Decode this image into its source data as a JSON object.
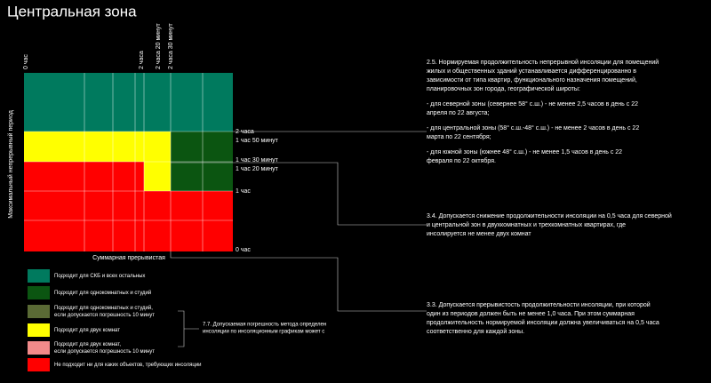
{
  "title": "Центральная зона",
  "top_labels": [
    "0 час",
    "2 часа",
    "2 часа 20 минут",
    "2 часа 30 минут"
  ],
  "right_labels": [
    "2 часа",
    "1 час 50 минут",
    "1 час 30 минут",
    "1 час 20 минут",
    "1 час",
    "0 час"
  ],
  "y_axis_label": "Максимальный непрерывный период",
  "x_axis_label": "Суммарная прерывистая",
  "legend": [
    {
      "color": "#007a5e",
      "lines": [
        "Подходит для СКБ и всех остальных"
      ]
    },
    {
      "color": "#0b5511",
      "lines": [
        "Подходит для однокомнатных и студий"
      ]
    },
    {
      "color": "#5a6a35",
      "lines": [
        "Подходит для однокомнатных и студий,",
        "если допускается погрешность 10 минут"
      ]
    },
    {
      "color": "#ffff00",
      "lines": [
        "Подходит для двух комнат"
      ]
    },
    {
      "color": "#f28a8a",
      "lines": [
        "Подходит для двух комнат,",
        "если допускается погрешность 10 минут"
      ]
    },
    {
      "color": "#ff0000",
      "lines": [
        "Не подходит ни для каких объектов, требующих инсоляции"
      ]
    }
  ],
  "notes": [
    {
      "lines": [
        "2.5. Нормируемая продолжительность непрерывной инсоляции для помещений",
        "жилых и общественных зданий устанавливается дифференцированно в",
        "зависимости от типа квартир, функционального назначения помещений,",
        "планировочных зон города, географической широты:",
        "- для северной зоны   (севернее 58° с.ш.)   - не менее 2,5 часов в день с 22",
        "апреля по 22 августа;",
        "- для центральной зоны   (58° с.ш.-48° с.ш.)   - не менее 2 часов в день с 22",
        "марта по 22 сентября;",
        "- для южной зоны   (южнее 48° с.ш.)   - не менее 1,5 часов в день с 22",
        "февраля по 22 октября."
      ]
    },
    {
      "lines": [
        "3.4. Допускается снижение продолжительности инсоляции на 0,5 часа для северной",
        "и центральной зон в двухкомнатных и трехкомнатных квартирах, где",
        "инсолируется не менее двух комнат"
      ]
    },
    {
      "lines": [
        "3.3. Допускается прерывистость продолжительности инсоляции, при которой",
        "один из периодов должен быть не менее 1,0 часа. При этом суммарная",
        "продолжительность нормируемой инсоляции должна увеличиваться на 0,5 часа",
        "соответственно для каждой зоны."
      ]
    },
    {
      "lines": [
        "7.7. Допускаемая погрешность метода определен",
        "инсоляции по инсоляционным графикам может с"
      ]
    }
  ]
}
